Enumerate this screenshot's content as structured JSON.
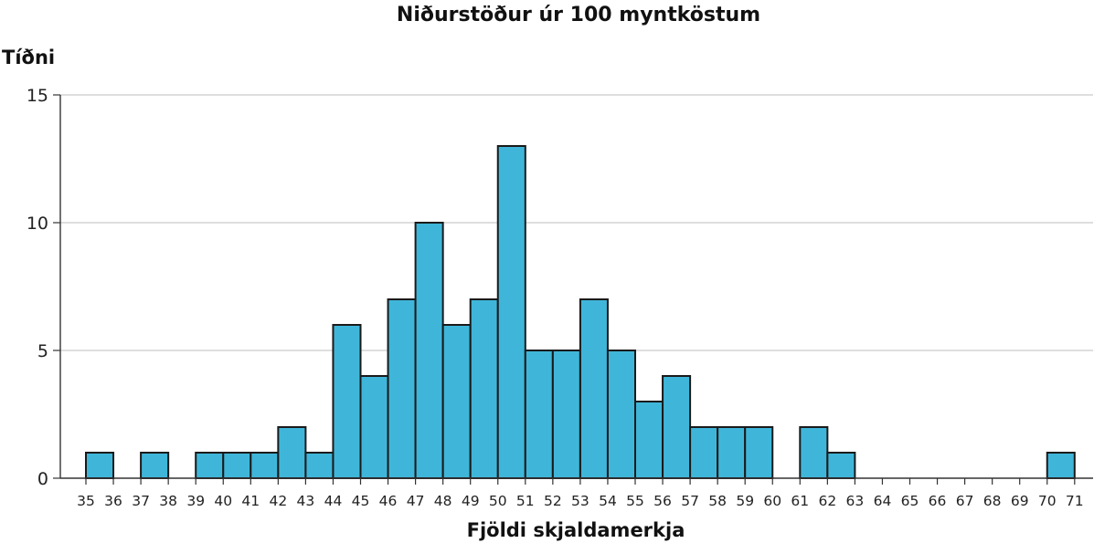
{
  "chart_data": {
    "type": "bar",
    "title": "Niðurstöður úr 100 myntköstum",
    "xlabel": "Fjöldi skjaldamerkja",
    "ylabel": "Tíðni",
    "ylim": [
      0,
      15
    ],
    "yticks": [
      0,
      5,
      10,
      15
    ],
    "xticks": [
      35,
      36,
      37,
      38,
      39,
      40,
      41,
      42,
      43,
      44,
      45,
      46,
      47,
      48,
      49,
      50,
      51,
      52,
      53,
      54,
      55,
      56,
      57,
      58,
      59,
      60,
      61,
      62,
      63,
      64,
      65,
      66,
      67,
      68,
      69,
      70,
      71
    ],
    "bins": [
      {
        "start": 35,
        "end": 36,
        "value": 1
      },
      {
        "start": 37,
        "end": 38,
        "value": 1
      },
      {
        "start": 39,
        "end": 40,
        "value": 1
      },
      {
        "start": 40,
        "end": 41,
        "value": 1
      },
      {
        "start": 41,
        "end": 42,
        "value": 1
      },
      {
        "start": 42,
        "end": 43,
        "value": 2
      },
      {
        "start": 43,
        "end": 44,
        "value": 1
      },
      {
        "start": 44,
        "end": 45,
        "value": 6
      },
      {
        "start": 45,
        "end": 46,
        "value": 4
      },
      {
        "start": 46,
        "end": 47,
        "value": 7
      },
      {
        "start": 47,
        "end": 48,
        "value": 10
      },
      {
        "start": 48,
        "end": 49,
        "value": 6
      },
      {
        "start": 49,
        "end": 50,
        "value": 7
      },
      {
        "start": 50,
        "end": 51,
        "value": 13
      },
      {
        "start": 51,
        "end": 52,
        "value": 5
      },
      {
        "start": 52,
        "end": 53,
        "value": 5
      },
      {
        "start": 53,
        "end": 54,
        "value": 7
      },
      {
        "start": 54,
        "end": 55,
        "value": 5
      },
      {
        "start": 55,
        "end": 56,
        "value": 3
      },
      {
        "start": 56,
        "end": 57,
        "value": 4
      },
      {
        "start": 57,
        "end": 58,
        "value": 2
      },
      {
        "start": 58,
        "end": 59,
        "value": 2
      },
      {
        "start": 59,
        "end": 60,
        "value": 2
      },
      {
        "start": 61,
        "end": 62,
        "value": 2
      },
      {
        "start": 62,
        "end": 63,
        "value": 1
      },
      {
        "start": 70,
        "end": 71,
        "value": 1
      }
    ],
    "grid": "horizontal",
    "legend": "none",
    "colors": {
      "bar_fill": "#3fb6d9",
      "bar_stroke": "#1a1a1a",
      "grid": "#bdbdbd",
      "axis": "#333333",
      "text": "#111111"
    }
  }
}
